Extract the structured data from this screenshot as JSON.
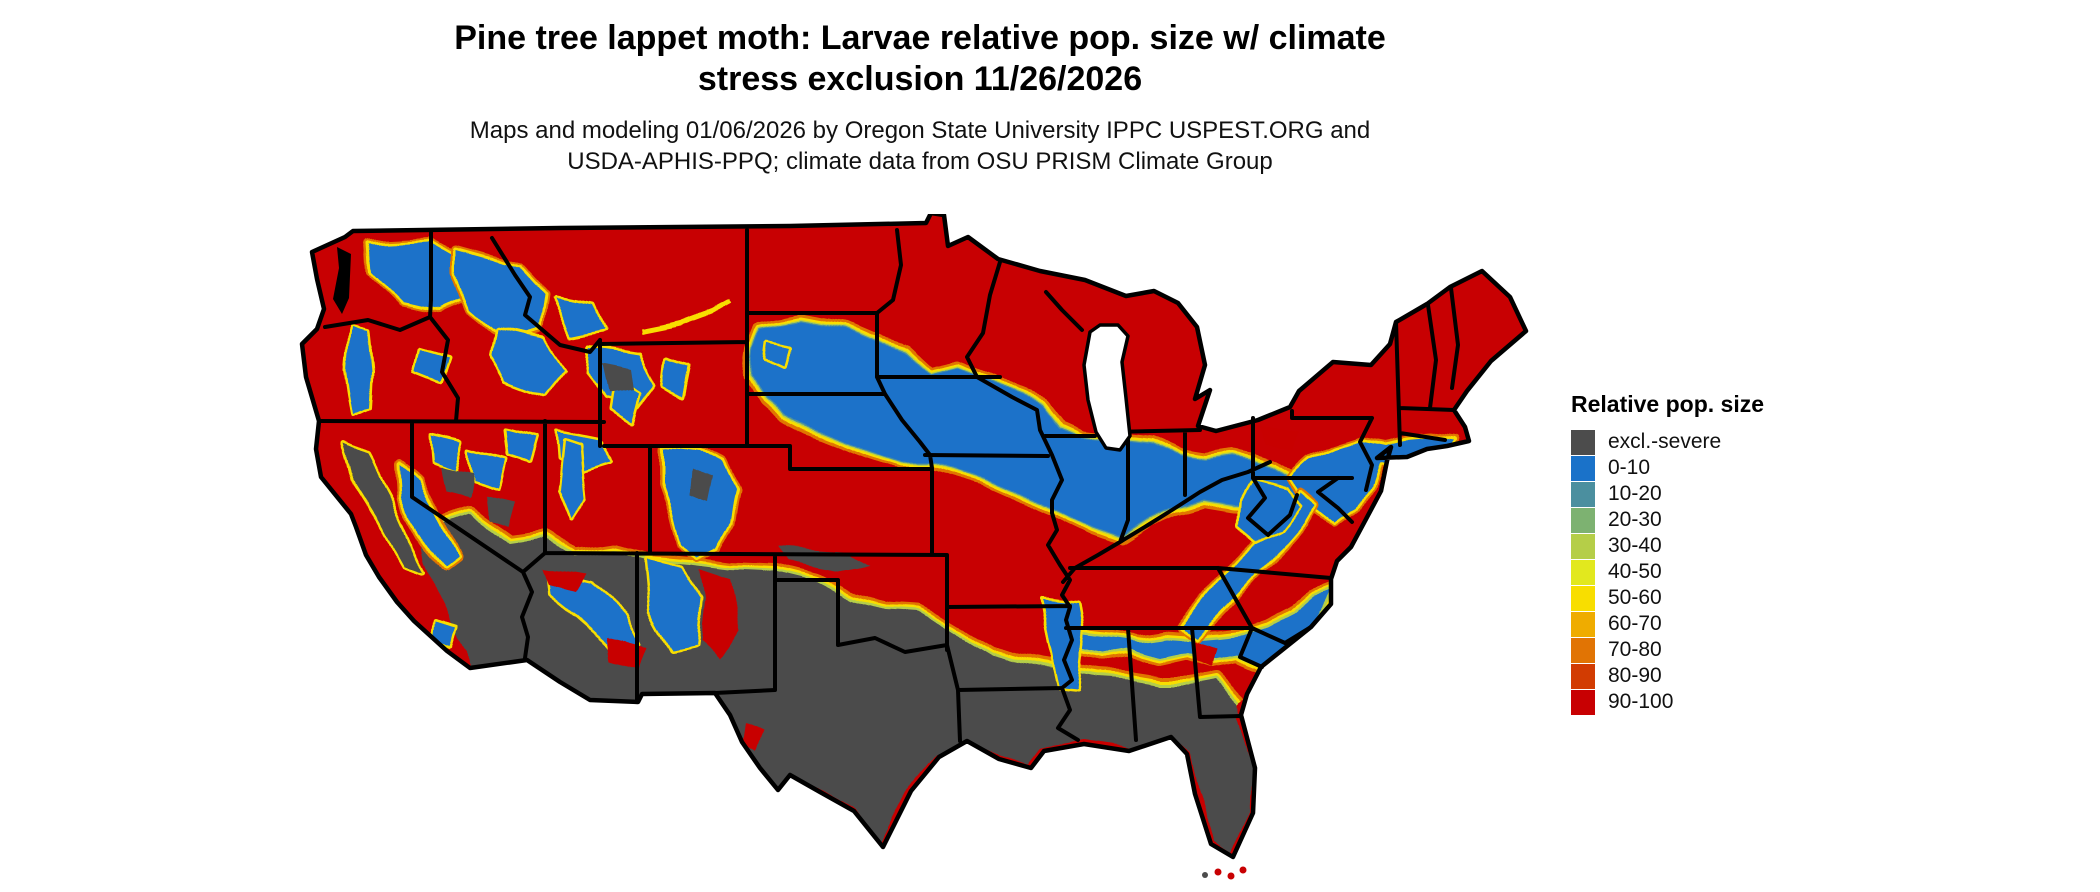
{
  "header": {
    "title_line1": "Pine tree lappet moth: Larvae relative pop. size w/ climate",
    "title_line2": "stress exclusion 11/26/2026",
    "subtitle_line1": "Maps and modeling 01/06/2026 by Oregon State University IPPC USPEST.ORG and",
    "subtitle_line2": "USDA-APHIS-PPQ; climate data from OSU PRISM Climate Group"
  },
  "legend": {
    "title": "Relative pop. size",
    "items": [
      {
        "label": "excl.-severe",
        "color": "#4C4C4C"
      },
      {
        "label": "0-10",
        "color": "#1A72C9"
      },
      {
        "label": "10-20",
        "color": "#4B8F9F"
      },
      {
        "label": "20-30",
        "color": "#7DB271"
      },
      {
        "label": "30-40",
        "color": "#B5CE48"
      },
      {
        "label": "40-50",
        "color": "#E2E81E"
      },
      {
        "label": "50-60",
        "color": "#F8DE00"
      },
      {
        "label": "60-70",
        "color": "#EFAC00"
      },
      {
        "label": "70-80",
        "color": "#E17404"
      },
      {
        "label": "80-90",
        "color": "#D23C02"
      },
      {
        "label": "90-100",
        "color": "#C80002"
      }
    ]
  },
  "map": {
    "region": "Continental United States",
    "border_color": "#000000",
    "water_color": "#FFFFFF"
  }
}
